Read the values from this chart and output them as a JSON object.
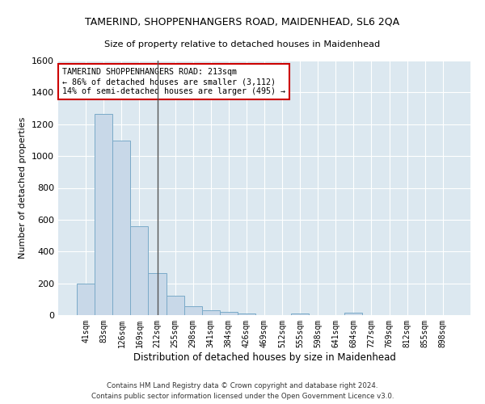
{
  "title": "TAMERIND, SHOPPENHANGERS ROAD, MAIDENHEAD, SL6 2QA",
  "subtitle": "Size of property relative to detached houses in Maidenhead",
  "xlabel": "Distribution of detached houses by size in Maidenhead",
  "ylabel": "Number of detached properties",
  "bar_labels": [
    "41sqm",
    "83sqm",
    "126sqm",
    "169sqm",
    "212sqm",
    "255sqm",
    "298sqm",
    "341sqm",
    "384sqm",
    "426sqm",
    "469sqm",
    "512sqm",
    "555sqm",
    "598sqm",
    "641sqm",
    "684sqm",
    "727sqm",
    "769sqm",
    "812sqm",
    "855sqm",
    "898sqm"
  ],
  "bar_values": [
    200,
    1265,
    1095,
    560,
    265,
    120,
    58,
    32,
    22,
    10,
    0,
    0,
    10,
    0,
    0,
    17,
    0,
    0,
    0,
    0,
    0
  ],
  "bar_color": "#c8d8e8",
  "bar_edge_color": "#7aaac8",
  "vline_x_index": 4,
  "vline_color": "#555555",
  "annotation_text": "TAMERIND SHOPPENHANGERS ROAD: 213sqm\n← 86% of detached houses are smaller (3,112)\n14% of semi-detached houses are larger (495) →",
  "annotation_box_color": "#ffffff",
  "annotation_border_color": "#cc0000",
  "ylim": [
    0,
    1600
  ],
  "yticks": [
    0,
    200,
    400,
    600,
    800,
    1000,
    1200,
    1400,
    1600
  ],
  "background_color": "#dce8f0",
  "footer_line1": "Contains HM Land Registry data © Crown copyright and database right 2024.",
  "footer_line2": "Contains public sector information licensed under the Open Government Licence v3.0."
}
